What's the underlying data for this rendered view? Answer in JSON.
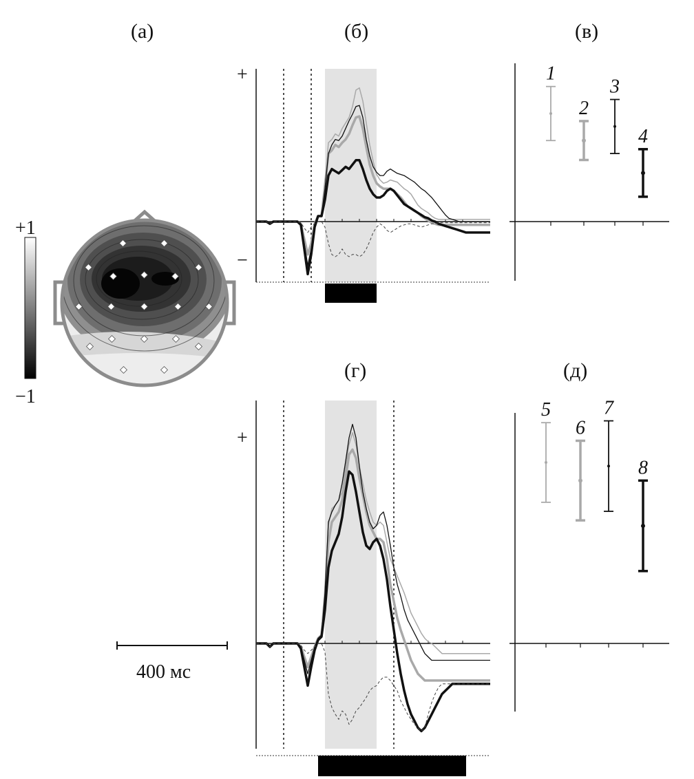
{
  "panel_labels": {
    "a": "(а)",
    "b": "(б)",
    "v": "(в)",
    "g": "(г)",
    "d": "(д)"
  },
  "colorbar": {
    "max_label": "+1",
    "min_label": "−1",
    "range": [
      -1,
      1
    ]
  },
  "scale_bar": {
    "label": "400 мс",
    "duration_ms": 400
  },
  "colors": {
    "light": "#a9a9a9",
    "dark": "#111111",
    "shade": "#e3e3e3",
    "head_outline": "#8c8c8c"
  },
  "chart_data": [
    {
      "id": "b",
      "type": "line",
      "title": "(б)",
      "plus_label": "+",
      "minus_label": "−",
      "x": [
        0,
        5,
        10,
        15,
        20,
        25,
        30,
        35,
        40,
        45,
        50,
        55,
        60,
        65,
        70,
        75,
        80,
        85,
        90,
        95,
        100,
        105,
        110,
        115,
        120,
        125,
        130,
        135,
        140,
        145,
        150,
        155,
        160,
        165,
        170,
        175,
        180,
        185,
        190,
        195,
        200,
        205,
        210,
        215,
        220,
        225,
        230,
        235,
        240,
        245,
        250,
        255,
        260,
        265,
        270,
        275,
        280,
        285,
        290,
        295,
        300,
        305,
        310,
        315,
        320,
        325,
        330,
        335,
        340
      ],
      "series": [
        {
          "style": "thin-light",
          "values": [
            0,
            0,
            0,
            0,
            -0.02,
            0,
            0,
            0,
            0,
            0,
            0,
            0,
            0,
            -0.02,
            -0.15,
            -0.3,
            -0.2,
            -0.02,
            0.05,
            0.05,
            0.35,
            0.72,
            0.75,
            0.8,
            0.78,
            0.85,
            0.9,
            0.95,
            1.05,
            1.2,
            1.22,
            1.1,
            0.9,
            0.7,
            0.55,
            0.43,
            0.38,
            0.35,
            0.36,
            0.38,
            0.37,
            0.36,
            0.33,
            0.3,
            0.28,
            0.25,
            0.2,
            0.15,
            0.12,
            0.1,
            0.08,
            0.05,
            0.03,
            0.02,
            0.02,
            0.02,
            0.02,
            0.02,
            0.02,
            0.02,
            0.02,
            0.02,
            0.02,
            0.02,
            0.02,
            0.02,
            0.02,
            0.02,
            0.02
          ]
        },
        {
          "style": "thick-light",
          "values": [
            0,
            0,
            0,
            0,
            -0.02,
            0,
            0,
            0,
            0,
            0,
            0,
            0,
            0,
            -0.02,
            -0.16,
            -0.3,
            -0.2,
            -0.02,
            0.05,
            0.05,
            0.33,
            0.62,
            0.65,
            0.7,
            0.68,
            0.72,
            0.75,
            0.8,
            0.88,
            0.95,
            0.96,
            0.85,
            0.68,
            0.52,
            0.42,
            0.35,
            0.32,
            0.3,
            0.3,
            0.3,
            0.28,
            0.25,
            0.22,
            0.18,
            0.14,
            0.12,
            0.1,
            0.08,
            0.05,
            0.03,
            0.01,
            -0.01,
            -0.02,
            -0.03,
            -0.03,
            -0.03,
            -0.03,
            -0.03,
            -0.03,
            -0.03,
            -0.03,
            -0.03,
            -0.03,
            -0.03,
            -0.03,
            -0.03,
            -0.03,
            -0.03,
            -0.03
          ]
        },
        {
          "style": "thin-dark",
          "values": [
            0,
            0,
            0,
            0,
            -0.02,
            0,
            0,
            0,
            0,
            0,
            0,
            0,
            0,
            -0.02,
            -0.2,
            -0.4,
            -0.25,
            -0.02,
            0.05,
            0.06,
            0.3,
            0.62,
            0.7,
            0.75,
            0.74,
            0.78,
            0.85,
            0.92,
            0.98,
            1.05,
            1.06,
            0.95,
            0.75,
            0.6,
            0.5,
            0.45,
            0.42,
            0.42,
            0.46,
            0.48,
            0.46,
            0.44,
            0.43,
            0.42,
            0.4,
            0.38,
            0.36,
            0.33,
            0.3,
            0.28,
            0.25,
            0.22,
            0.18,
            0.14,
            0.1,
            0.06,
            0.03,
            0.02,
            0.01,
            0,
            0,
            0,
            0,
            0,
            0,
            0,
            0,
            0,
            0
          ]
        },
        {
          "style": "thick-dark",
          "values": [
            0,
            0,
            0,
            0,
            -0.02,
            0,
            0,
            0,
            0,
            0,
            0,
            0,
            0,
            -0.03,
            -0.25,
            -0.48,
            -0.3,
            -0.05,
            0.05,
            0.05,
            0.2,
            0.42,
            0.48,
            0.46,
            0.44,
            0.47,
            0.5,
            0.48,
            0.52,
            0.56,
            0.56,
            0.48,
            0.38,
            0.3,
            0.25,
            0.22,
            0.22,
            0.24,
            0.28,
            0.3,
            0.28,
            0.24,
            0.2,
            0.16,
            0.14,
            0.12,
            0.1,
            0.08,
            0.06,
            0.04,
            0.03,
            0.01,
            0,
            -0.02,
            -0.03,
            -0.04,
            -0.05,
            -0.06,
            -0.07,
            -0.08,
            -0.09,
            -0.1,
            -0.1,
            -0.1,
            -0.1,
            -0.1,
            -0.1,
            -0.1,
            -0.1
          ]
        },
        {
          "style": "dashed-difference",
          "values": [
            0,
            0,
            0,
            0,
            -0.02,
            0,
            0,
            0,
            0,
            0,
            0,
            0,
            0,
            -0.01,
            -0.06,
            -0.1,
            -0.05,
            -0.02,
            0,
            0,
            -0.05,
            -0.2,
            -0.3,
            -0.32,
            -0.3,
            -0.25,
            -0.3,
            -0.32,
            -0.3,
            -0.3,
            -0.32,
            -0.3,
            -0.25,
            -0.18,
            -0.1,
            -0.05,
            -0.02,
            -0.04,
            -0.08,
            -0.1,
            -0.08,
            -0.06,
            -0.04,
            -0.03,
            -0.02,
            -0.02,
            -0.03,
            -0.04,
            -0.05,
            -0.04,
            -0.03,
            -0.02,
            -0.02,
            -0.01,
            -0.01,
            -0.01,
            -0.01,
            -0.01,
            -0.01,
            -0.01,
            -0.01,
            -0.01,
            -0.01,
            -0.01,
            -0.01,
            -0.01,
            -0.01,
            -0.01,
            -0.01
          ]
        }
      ],
      "markers": [
        40,
        80
      ],
      "shaded_window": [
        100,
        175
      ],
      "bar_window": [
        100,
        175
      ],
      "ylim": [
        -0.5,
        1.3
      ]
    },
    {
      "id": "g",
      "type": "line",
      "title": "(г)",
      "plus_label": "+",
      "x": [
        0,
        5,
        10,
        15,
        20,
        25,
        30,
        35,
        40,
        45,
        50,
        55,
        60,
        65,
        70,
        75,
        80,
        85,
        90,
        95,
        100,
        105,
        110,
        115,
        120,
        125,
        130,
        135,
        140,
        145,
        150,
        155,
        160,
        165,
        170,
        175,
        180,
        185,
        190,
        195,
        200,
        205,
        210,
        215,
        220,
        225,
        230,
        235,
        240,
        245,
        250,
        255,
        260,
        265,
        270,
        275,
        280,
        285,
        290,
        295,
        300,
        305,
        310,
        315,
        320,
        325,
        330,
        335,
        340
      ],
      "series": [
        {
          "style": "thin-light",
          "values": [
            0,
            0,
            0,
            0,
            -0.02,
            0,
            0,
            0,
            0,
            0,
            0,
            0,
            0,
            -0.02,
            -0.08,
            -0.14,
            -0.08,
            -0.02,
            0.03,
            0.05,
            0.3,
            0.7,
            0.8,
            0.82,
            0.85,
            0.9,
            1.05,
            1.18,
            1.25,
            1.18,
            1.05,
            0.95,
            0.85,
            0.78,
            0.72,
            0.7,
            0.72,
            0.7,
            0.6,
            0.5,
            0.45,
            0.4,
            0.35,
            0.3,
            0.24,
            0.18,
            0.14,
            0.1,
            0.06,
            0.03,
            0.01,
            0,
            -0.02,
            -0.04,
            -0.06,
            -0.06,
            -0.06,
            -0.06,
            -0.06,
            -0.06,
            -0.06,
            -0.06,
            -0.06,
            -0.06,
            -0.06,
            -0.06,
            -0.06,
            -0.06,
            -0.06
          ]
        },
        {
          "style": "thick-light",
          "values": [
            0,
            0,
            0,
            0,
            -0.02,
            0,
            0,
            0,
            0,
            0,
            0,
            0,
            0,
            -0.02,
            -0.08,
            -0.14,
            -0.08,
            -0.02,
            0.03,
            0.05,
            0.28,
            0.6,
            0.72,
            0.75,
            0.78,
            0.85,
            0.98,
            1.12,
            1.15,
            1.1,
            0.98,
            0.88,
            0.78,
            0.7,
            0.66,
            0.62,
            0.62,
            0.6,
            0.5,
            0.35,
            0.25,
            0.15,
            0.08,
            0.02,
            -0.04,
            -0.1,
            -0.14,
            -0.18,
            -0.2,
            -0.22,
            -0.22,
            -0.22,
            -0.22,
            -0.22,
            -0.22,
            -0.22,
            -0.22,
            -0.22,
            -0.22,
            -0.22,
            -0.22,
            -0.22,
            -0.22,
            -0.22,
            -0.22,
            -0.22,
            -0.22,
            -0.22,
            -0.22
          ]
        },
        {
          "style": "thin-dark",
          "values": [
            0,
            0,
            0,
            0,
            -0.02,
            0,
            0,
            0,
            0,
            0,
            0,
            0,
            0,
            -0.02,
            -0.1,
            -0.18,
            -0.1,
            -0.02,
            0.03,
            0.05,
            0.3,
            0.72,
            0.78,
            0.82,
            0.85,
            0.95,
            1.08,
            1.22,
            1.3,
            1.22,
            1.05,
            0.9,
            0.8,
            0.72,
            0.68,
            0.7,
            0.76,
            0.78,
            0.7,
            0.58,
            0.45,
            0.35,
            0.28,
            0.2,
            0.14,
            0.1,
            0.06,
            0.02,
            -0.02,
            -0.06,
            -0.08,
            -0.1,
            -0.1,
            -0.1,
            -0.1,
            -0.1,
            -0.1,
            -0.1,
            -0.1,
            -0.1,
            -0.1,
            -0.1,
            -0.1,
            -0.1,
            -0.1,
            -0.1,
            -0.1,
            -0.1,
            -0.1
          ]
        },
        {
          "style": "thick-dark",
          "values": [
            0,
            0,
            0,
            0,
            -0.02,
            0,
            0,
            0,
            0,
            0,
            0,
            0,
            0,
            -0.03,
            -0.14,
            -0.25,
            -0.14,
            -0.04,
            0.02,
            0.04,
            0.2,
            0.45,
            0.55,
            0.6,
            0.65,
            0.75,
            0.9,
            1.02,
            1.0,
            0.9,
            0.78,
            0.66,
            0.58,
            0.56,
            0.6,
            0.62,
            0.58,
            0.5,
            0.38,
            0.22,
            0.08,
            -0.06,
            -0.18,
            -0.28,
            -0.36,
            -0.42,
            -0.46,
            -0.5,
            -0.52,
            -0.5,
            -0.46,
            -0.42,
            -0.38,
            -0.34,
            -0.3,
            -0.28,
            -0.26,
            -0.24,
            -0.24,
            -0.24,
            -0.24,
            -0.24,
            -0.24,
            -0.24,
            -0.24,
            -0.24,
            -0.24,
            -0.24,
            -0.24
          ]
        },
        {
          "style": "dashed-difference",
          "values": [
            0,
            0,
            0,
            0,
            -0.02,
            0,
            0,
            0,
            0,
            0,
            0,
            0,
            0,
            -0.01,
            -0.04,
            -0.06,
            -0.04,
            -0.02,
            0,
            0,
            -0.05,
            -0.3,
            -0.38,
            -0.42,
            -0.45,
            -0.4,
            -0.42,
            -0.48,
            -0.45,
            -0.4,
            -0.38,
            -0.35,
            -0.32,
            -0.28,
            -0.26,
            -0.25,
            -0.22,
            -0.2,
            -0.2,
            -0.22,
            -0.25,
            -0.28,
            -0.34,
            -0.38,
            -0.42,
            -0.45,
            -0.48,
            -0.5,
            -0.52,
            -0.5,
            -0.42,
            -0.35,
            -0.3,
            -0.26,
            -0.24,
            -0.24,
            -0.24,
            -0.24,
            -0.24,
            -0.24,
            -0.24,
            -0.24,
            -0.24,
            -0.24,
            -0.24,
            -0.24,
            -0.24,
            -0.24,
            -0.24
          ]
        }
      ],
      "markers": [
        40,
        200
      ],
      "shaded_window": [
        100,
        175
      ],
      "bar_window": [
        90,
        305
      ],
      "ylim": [
        -0.6,
        1.4
      ]
    },
    {
      "id": "v",
      "type": "errorbar",
      "title": "(в)",
      "items": [
        {
          "label": "1",
          "style": "thin-light",
          "mean": 1.0,
          "err": 0.25
        },
        {
          "label": "2",
          "style": "thick-light",
          "mean": 0.75,
          "err": 0.18
        },
        {
          "label": "3",
          "style": "thin-dark",
          "mean": 0.88,
          "err": 0.25
        },
        {
          "label": "4",
          "style": "thick-dark",
          "mean": 0.45,
          "err": 0.22
        }
      ],
      "ylim": [
        0,
        1.35
      ]
    },
    {
      "id": "d",
      "type": "errorbar",
      "title": "(д)",
      "items": [
        {
          "label": "5",
          "style": "thin-light",
          "mean": 1.0,
          "err": 0.22
        },
        {
          "label": "6",
          "style": "thick-light",
          "mean": 0.9,
          "err": 0.22
        },
        {
          "label": "7",
          "style": "thin-dark",
          "mean": 0.98,
          "err": 0.25
        },
        {
          "label": "8",
          "style": "thick-dark",
          "mean": 0.65,
          "err": 0.25
        }
      ],
      "ylim": [
        0,
        1.35
      ]
    }
  ]
}
